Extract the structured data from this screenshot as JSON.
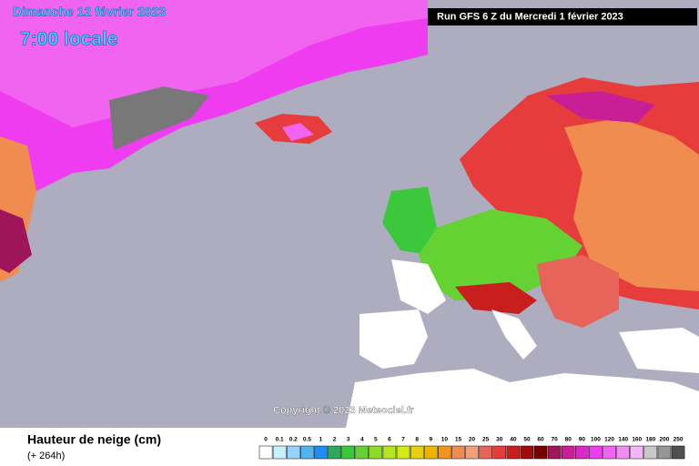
{
  "map": {
    "date": "Dimanche 12 février 2023",
    "time": "7:00 locale",
    "run": "Run GFS 6 Z du Mercredi 1 février 2023",
    "copyright": "Copyright © 2023 Meteociel.fr",
    "variable": "Hauteur de neige (cm)",
    "lead": "(+ 264h)",
    "legend": {
      "levels": [
        0,
        0.1,
        0.2,
        0.5,
        1,
        2,
        3,
        4,
        5,
        6,
        7,
        8,
        9,
        10,
        15,
        20,
        25,
        30,
        40,
        50,
        60,
        70,
        80,
        90,
        100,
        120,
        140,
        160,
        180,
        200,
        250
      ],
      "colors": [
        "#ffffff",
        "#c8f0ff",
        "#96d2fa",
        "#50b4f0",
        "#1e8cf0",
        "#2daa5a",
        "#3cc83c",
        "#64d232",
        "#8cdc28",
        "#b4e61e",
        "#d2eb14",
        "#e6d20a",
        "#f0b400",
        "#f0961e",
        "#f08c50",
        "#f0a07a",
        "#e6645a",
        "#e63c3c",
        "#c81e1e",
        "#a00a0a",
        "#780000",
        "#a0145a",
        "#c81e96",
        "#dc28c8",
        "#f03cf0",
        "#f064f0",
        "#f08cf0",
        "#f5b4f5",
        "#c8c8c8",
        "#969696",
        "#505050"
      ]
    }
  }
}
